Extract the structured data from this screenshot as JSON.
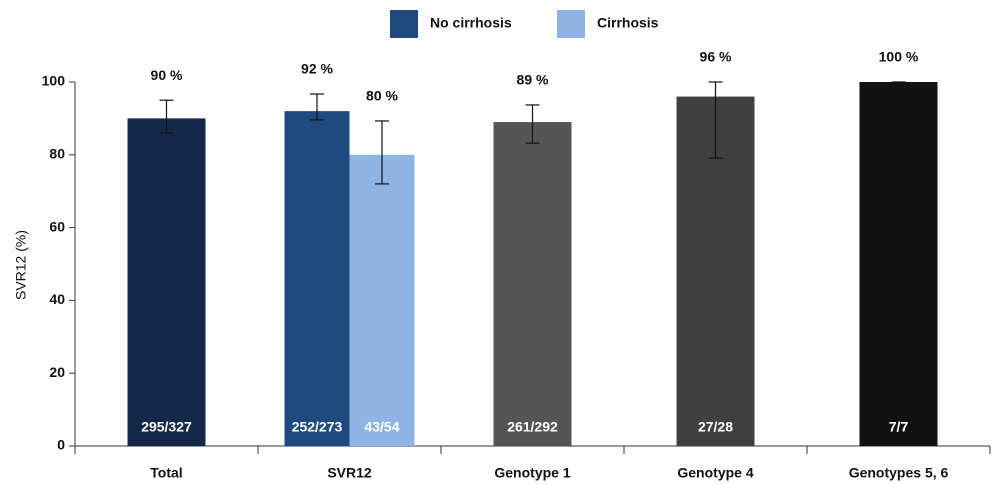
{
  "chart_data": {
    "type": "bar",
    "y_label": "SVR12 (%)",
    "ylim": [
      0,
      100
    ],
    "yticks": [
      0,
      20,
      40,
      60,
      80,
      100
    ],
    "legend": [
      {
        "name": "No cirrhosis",
        "color": "#1f4a80"
      },
      {
        "name": "Cirrhosis",
        "color": "#8fb4e3"
      }
    ],
    "groups": [
      {
        "category": "Total",
        "bars": [
          {
            "value": 90,
            "value_label": "90 %",
            "count": "295/327",
            "ci": [
              86,
              95
            ],
            "color": "#14294a"
          }
        ]
      },
      {
        "category": "SVR12",
        "bars": [
          {
            "value": 92,
            "value_label": "92 %",
            "count": "252/273",
            "ci": [
              89.6,
              96.7
            ],
            "color": "#1f4a80"
          },
          {
            "value": 80,
            "value_label": "80 %",
            "count": "43/54",
            "ci": [
              72,
              89.3
            ],
            "color": "#8fb4e3"
          }
        ]
      },
      {
        "category": "Genotype 1",
        "bars": [
          {
            "value": 89,
            "value_label": "89 %",
            "count": "261/292",
            "ci": [
              83.2,
              93.7
            ],
            "color": "#555555"
          }
        ]
      },
      {
        "category": "Genotype 4",
        "bars": [
          {
            "value": 96,
            "value_label": "96 %",
            "count": "27/28",
            "ci": [
              79.1,
              100
            ],
            "color": "#404040"
          }
        ]
      },
      {
        "category": "Genotypes 5, 6",
        "bars": [
          {
            "value": 100,
            "value_label": "100 %",
            "count": "7/7",
            "ci": [
              60.4,
              100
            ],
            "color": "#111111"
          }
        ]
      }
    ]
  }
}
